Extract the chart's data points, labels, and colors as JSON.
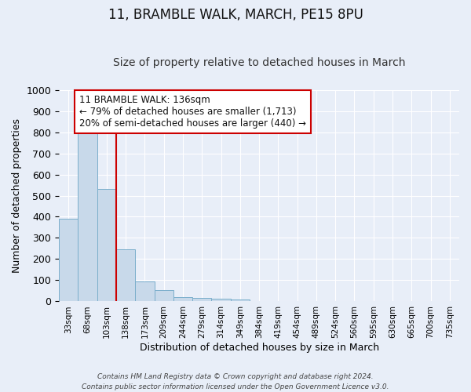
{
  "title": "11, BRAMBLE WALK, MARCH, PE15 8PU",
  "subtitle": "Size of property relative to detached houses in March",
  "xlabel": "Distribution of detached houses by size in March",
  "ylabel": "Number of detached properties",
  "bar_values": [
    390,
    825,
    530,
    245,
    95,
    52,
    22,
    15,
    12,
    10,
    0,
    0,
    0,
    0,
    0,
    0,
    0,
    0,
    0,
    0,
    0
  ],
  "bar_labels": [
    "33sqm",
    "68sqm",
    "103sqm",
    "138sqm",
    "173sqm",
    "209sqm",
    "244sqm",
    "279sqm",
    "314sqm",
    "349sqm",
    "384sqm",
    "419sqm",
    "454sqm",
    "489sqm",
    "524sqm",
    "560sqm",
    "595sqm",
    "630sqm",
    "665sqm",
    "700sqm",
    "735sqm"
  ],
  "bar_color": "#c8d9ea",
  "bar_edge_color": "#7aaecb",
  "ylim": [
    0,
    1000
  ],
  "yticks": [
    0,
    100,
    200,
    300,
    400,
    500,
    600,
    700,
    800,
    900,
    1000
  ],
  "vline_x": 3,
  "vline_color": "#cc0000",
  "annotation_title": "11 BRAMBLE WALK: 136sqm",
  "annotation_line1": "← 79% of detached houses are smaller (1,713)",
  "annotation_line2": "20% of semi-detached houses are larger (440) →",
  "bg_color": "#e8eef8",
  "grid_color": "#ffffff",
  "title_fontsize": 12,
  "subtitle_fontsize": 10,
  "footer": "Contains HM Land Registry data © Crown copyright and database right 2024.\nContains public sector information licensed under the Open Government Licence v3.0."
}
